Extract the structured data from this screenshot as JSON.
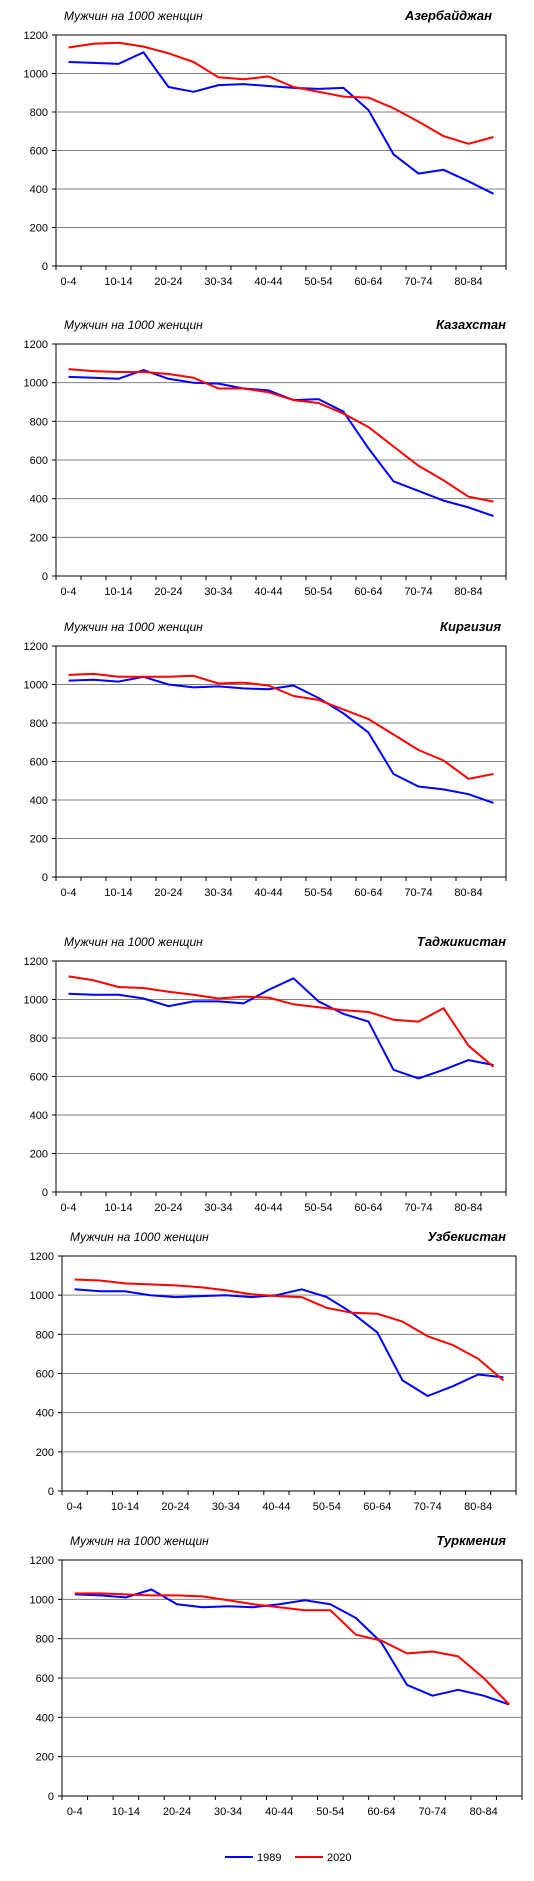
{
  "legend": [
    {
      "label": "1989",
      "color": "#0000ff"
    },
    {
      "label": "2020",
      "color": "#ff0000"
    }
  ],
  "chart_data": [
    {
      "type": "line",
      "title": "Азербайджан",
      "ylabel": "Мужчин на 1000 женщин",
      "ylim": [
        0,
        1200
      ],
      "yticks": [
        0,
        200,
        400,
        600,
        800,
        1000,
        1200
      ],
      "categories": [
        "0-4",
        "5-9",
        "10-14",
        "15-19",
        "20-24",
        "25-29",
        "30-34",
        "35-39",
        "40-44",
        "45-49",
        "50-54",
        "55-59",
        "60-64",
        "65-69",
        "70-74",
        "75-79",
        "80-84",
        "85+"
      ],
      "category_labels": [
        "0-4",
        "10-14",
        "20-24",
        "30-34",
        "40-44",
        "50-54",
        "60-64",
        "70-74",
        "80-84"
      ],
      "grid": true,
      "series": [
        {
          "name": "1989",
          "color": "#0000ff",
          "values": [
            1060,
            1055,
            1050,
            1110,
            930,
            905,
            940,
            945,
            935,
            925,
            920,
            925,
            810,
            580,
            480,
            500,
            440,
            375
          ]
        },
        {
          "name": "2020",
          "color": "#ff0000",
          "values": [
            1135,
            1155,
            1160,
            1140,
            1105,
            1060,
            980,
            970,
            985,
            930,
            905,
            880,
            875,
            820,
            750,
            675,
            635,
            670
          ]
        }
      ]
    },
    {
      "type": "line",
      "title": "Казахстан",
      "ylabel": "Мужчин на 1000 женщин",
      "ylim": [
        0,
        1200
      ],
      "yticks": [
        0,
        200,
        400,
        600,
        800,
        1000,
        1200
      ],
      "categories": [
        "0-4",
        "5-9",
        "10-14",
        "15-19",
        "20-24",
        "25-29",
        "30-34",
        "35-39",
        "40-44",
        "45-49",
        "50-54",
        "55-59",
        "60-64",
        "65-69",
        "70-74",
        "75-79",
        "80-84",
        "85+"
      ],
      "category_labels": [
        "0-4",
        "10-14",
        "20-24",
        "30-34",
        "40-44",
        "50-54",
        "60-64",
        "70-74",
        "80-84"
      ],
      "grid": true,
      "series": [
        {
          "name": "1989",
          "color": "#0000ff",
          "values": [
            1030,
            1025,
            1020,
            1065,
            1020,
            1000,
            995,
            970,
            960,
            910,
            915,
            850,
            660,
            490,
            440,
            390,
            355,
            310
          ]
        },
        {
          "name": "2020",
          "color": "#ff0000",
          "values": [
            1070,
            1060,
            1055,
            1055,
            1045,
            1025,
            970,
            970,
            950,
            910,
            895,
            840,
            770,
            670,
            570,
            495,
            410,
            385
          ]
        }
      ]
    },
    {
      "type": "line",
      "title": "Киргизия",
      "ylabel": "Мужчин на 1000 женщин",
      "ylim": [
        0,
        1200
      ],
      "yticks": [
        0,
        200,
        400,
        600,
        800,
        1000,
        1200
      ],
      "categories": [
        "0-4",
        "5-9",
        "10-14",
        "15-19",
        "20-24",
        "25-29",
        "30-34",
        "35-39",
        "40-44",
        "45-49",
        "50-54",
        "55-59",
        "60-64",
        "65-69",
        "70-74",
        "75-79",
        "80-84",
        "85+"
      ],
      "category_labels": [
        "0-4",
        "10-14",
        "20-24",
        "30-34",
        "40-44",
        "50-54",
        "60-64",
        "70-74",
        "80-84"
      ],
      "grid": true,
      "series": [
        {
          "name": "1989",
          "color": "#0000ff",
          "values": [
            1020,
            1025,
            1015,
            1040,
            1000,
            985,
            990,
            980,
            975,
            995,
            930,
            850,
            750,
            535,
            470,
            455,
            430,
            385
          ]
        },
        {
          "name": "2020",
          "color": "#ff0000",
          "values": [
            1050,
            1055,
            1040,
            1040,
            1040,
            1045,
            1005,
            1010,
            995,
            940,
            920,
            870,
            820,
            740,
            660,
            605,
            510,
            535
          ]
        }
      ]
    },
    {
      "type": "line",
      "title": "Таджикистан",
      "ylabel": "Мужчин на 1000 женщин",
      "ylim": [
        0,
        1200
      ],
      "yticks": [
        0,
        200,
        400,
        600,
        800,
        1000,
        1200
      ],
      "categories": [
        "0-4",
        "5-9",
        "10-14",
        "15-19",
        "20-24",
        "25-29",
        "30-34",
        "35-39",
        "40-44",
        "45-49",
        "50-54",
        "55-59",
        "60-64",
        "65-69",
        "70-74",
        "75-79",
        "80-84",
        "85+"
      ],
      "category_labels": [
        "0-4",
        "10-14",
        "20-24",
        "30-34",
        "40-44",
        "50-54",
        "60-64",
        "70-74",
        "80-84"
      ],
      "grid": true,
      "series": [
        {
          "name": "1989",
          "color": "#0000ff",
          "values": [
            1030,
            1025,
            1025,
            1005,
            965,
            990,
            990,
            980,
            1050,
            1110,
            990,
            925,
            885,
            635,
            590,
            635,
            685,
            660
          ]
        },
        {
          "name": "2020",
          "color": "#ff0000",
          "values": [
            1120,
            1100,
            1065,
            1060,
            1040,
            1025,
            1005,
            1015,
            1010,
            975,
            960,
            945,
            935,
            895,
            885,
            955,
            760,
            650
          ]
        }
      ]
    },
    {
      "type": "line",
      "title": "Узбекистан",
      "ylabel": "Мужчин на 1000 женщин",
      "ylim": [
        0,
        1200
      ],
      "yticks": [
        0,
        200,
        400,
        600,
        800,
        1000,
        1200
      ],
      "categories": [
        "0-4",
        "5-9",
        "10-14",
        "15-19",
        "20-24",
        "25-29",
        "30-34",
        "35-39",
        "40-44",
        "45-49",
        "50-54",
        "55-59",
        "60-64",
        "65-69",
        "70-74",
        "75-79",
        "80-84",
        "85+"
      ],
      "category_labels": [
        "0-4",
        "10-14",
        "20-24",
        "30-34",
        "40-44",
        "50-54",
        "60-64",
        "70-74",
        "80-84"
      ],
      "grid": true,
      "series": [
        {
          "name": "1989",
          "color": "#0000ff",
          "values": [
            1030,
            1020,
            1020,
            1000,
            990,
            995,
            1000,
            990,
            1000,
            1030,
            990,
            910,
            810,
            565,
            485,
            535,
            595,
            580
          ]
        },
        {
          "name": "2020",
          "color": "#ff0000",
          "values": [
            1080,
            1075,
            1060,
            1055,
            1050,
            1040,
            1025,
            1005,
            995,
            990,
            935,
            910,
            905,
            865,
            790,
            745,
            675,
            565
          ]
        }
      ]
    },
    {
      "type": "line",
      "title": "Туркмения",
      "ylabel": "Мужчин на 1000 женщин",
      "ylim": [
        0,
        1200
      ],
      "yticks": [
        0,
        200,
        400,
        600,
        800,
        1000,
        1200
      ],
      "categories": [
        "0-4",
        "5-9",
        "10-14",
        "15-19",
        "20-24",
        "25-29",
        "30-34",
        "35-39",
        "40-44",
        "45-49",
        "50-54",
        "55-59",
        "60-64",
        "65-69",
        "70-74",
        "75-79",
        "80-84",
        "85+"
      ],
      "category_labels": [
        "0-4",
        "10-14",
        "20-24",
        "30-34",
        "40-44",
        "50-54",
        "60-64",
        "70-74",
        "80-84"
      ],
      "grid": true,
      "series": [
        {
          "name": "1989",
          "color": "#0000ff",
          "values": [
            1025,
            1020,
            1010,
            1050,
            975,
            960,
            965,
            960,
            975,
            995,
            975,
            905,
            780,
            565,
            510,
            540,
            510,
            465
          ]
        },
        {
          "name": "2020",
          "color": "#ff0000",
          "values": [
            1030,
            1030,
            1025,
            1020,
            1020,
            1015,
            995,
            975,
            960,
            945,
            945,
            820,
            790,
            725,
            735,
            710,
            600,
            465
          ]
        }
      ]
    }
  ]
}
